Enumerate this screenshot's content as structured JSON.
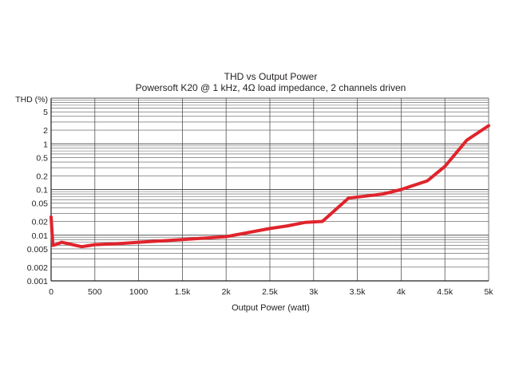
{
  "chart_data": {
    "type": "line",
    "title": "THD vs Output Power",
    "subtitle": "Powersoft K20 @ 1 kHz, 4Ω load impedance, 2 channels driven",
    "xlabel": "Output Power (watt)",
    "ylabel": "THD (%)",
    "xlim": [
      0,
      5000
    ],
    "ylim": [
      0.001,
      10
    ],
    "yscale": "log",
    "grid": true,
    "x_ticks": [
      0,
      500,
      1000,
      1500,
      2000,
      2500,
      3000,
      3500,
      4000,
      4500,
      5000
    ],
    "x_tick_labels": [
      "0",
      "500",
      "1000",
      "1.5k",
      "2k",
      "2.5k",
      "3k",
      "3.5k",
      "4k",
      "4.5k",
      "5k"
    ],
    "y_ticks": [
      0.001,
      0.002,
      0.005,
      0.01,
      0.02,
      0.05,
      0.1,
      0.2,
      0.5,
      1,
      2,
      5
    ],
    "y_tick_labels": [
      "0.001",
      "0.002",
      "0.005",
      "0.01",
      "0.02",
      "0.05",
      "0.1",
      "0.2",
      "0.5",
      "1",
      "2",
      "5"
    ],
    "line_color": "#e0242c",
    "grid_color": "#555555",
    "series": [
      {
        "x": [
          0,
          20,
          50,
          120,
          200,
          350,
          500,
          750,
          1000,
          1500,
          2000,
          2500,
          2700,
          2900,
          3100,
          3400,
          3600,
          3800,
          4000,
          4300,
          4500,
          4750,
          5000
        ],
        "y": [
          0.025,
          0.006,
          0.0062,
          0.007,
          0.0065,
          0.0056,
          0.0062,
          0.0065,
          0.007,
          0.008,
          0.0093,
          0.014,
          0.016,
          0.019,
          0.02,
          0.065,
          0.072,
          0.08,
          0.1,
          0.155,
          0.32,
          1.2,
          2.5
        ]
      }
    ]
  }
}
